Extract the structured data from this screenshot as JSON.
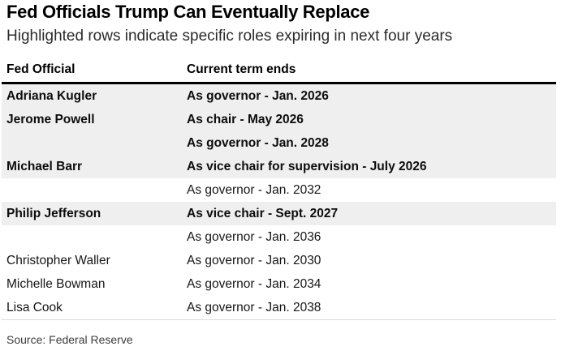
{
  "chart_data": {
    "type": "table",
    "title": "Fed Officials Trump Can Eventually Replace",
    "subtitle": "Highlighted rows indicate specific roles expiring in next four years",
    "columns": [
      "Fed Official",
      "Current term ends"
    ],
    "rows": [
      {
        "official": "Adriana Kugler",
        "term": "As governor - Jan. 2026",
        "highlighted": true
      },
      {
        "official": "Jerome Powell",
        "term": "As chair - May 2026",
        "highlighted": true
      },
      {
        "official": "",
        "term": "As governor - Jan. 2028",
        "highlighted": true
      },
      {
        "official": "Michael Barr",
        "term": "As vice chair for supervision - July 2026",
        "highlighted": true
      },
      {
        "official": "",
        "term": "As governor - Jan. 2032",
        "highlighted": false
      },
      {
        "official": "Philip Jefferson",
        "term": "As vice chair - Sept. 2027",
        "highlighted": true
      },
      {
        "official": "",
        "term": "As governor - Jan. 2036",
        "highlighted": false
      },
      {
        "official": "Christopher Waller",
        "term": "As governor - Jan. 2030",
        "highlighted": false
      },
      {
        "official": "Michelle Bowman",
        "term": "As governor - Jan. 2034",
        "highlighted": false
      },
      {
        "official": "Lisa Cook",
        "term": "As governor - Jan. 2038",
        "highlighted": false
      }
    ],
    "source": "Source: Federal Reserve",
    "legend_position": "none",
    "grid": false
  },
  "colors": {
    "highlight_row_bg": "#efefef",
    "header_rule": "#000000",
    "title_text": "#000000",
    "subtitle_text": "#2b2b2b",
    "source_text": "#3c3c3c"
  }
}
